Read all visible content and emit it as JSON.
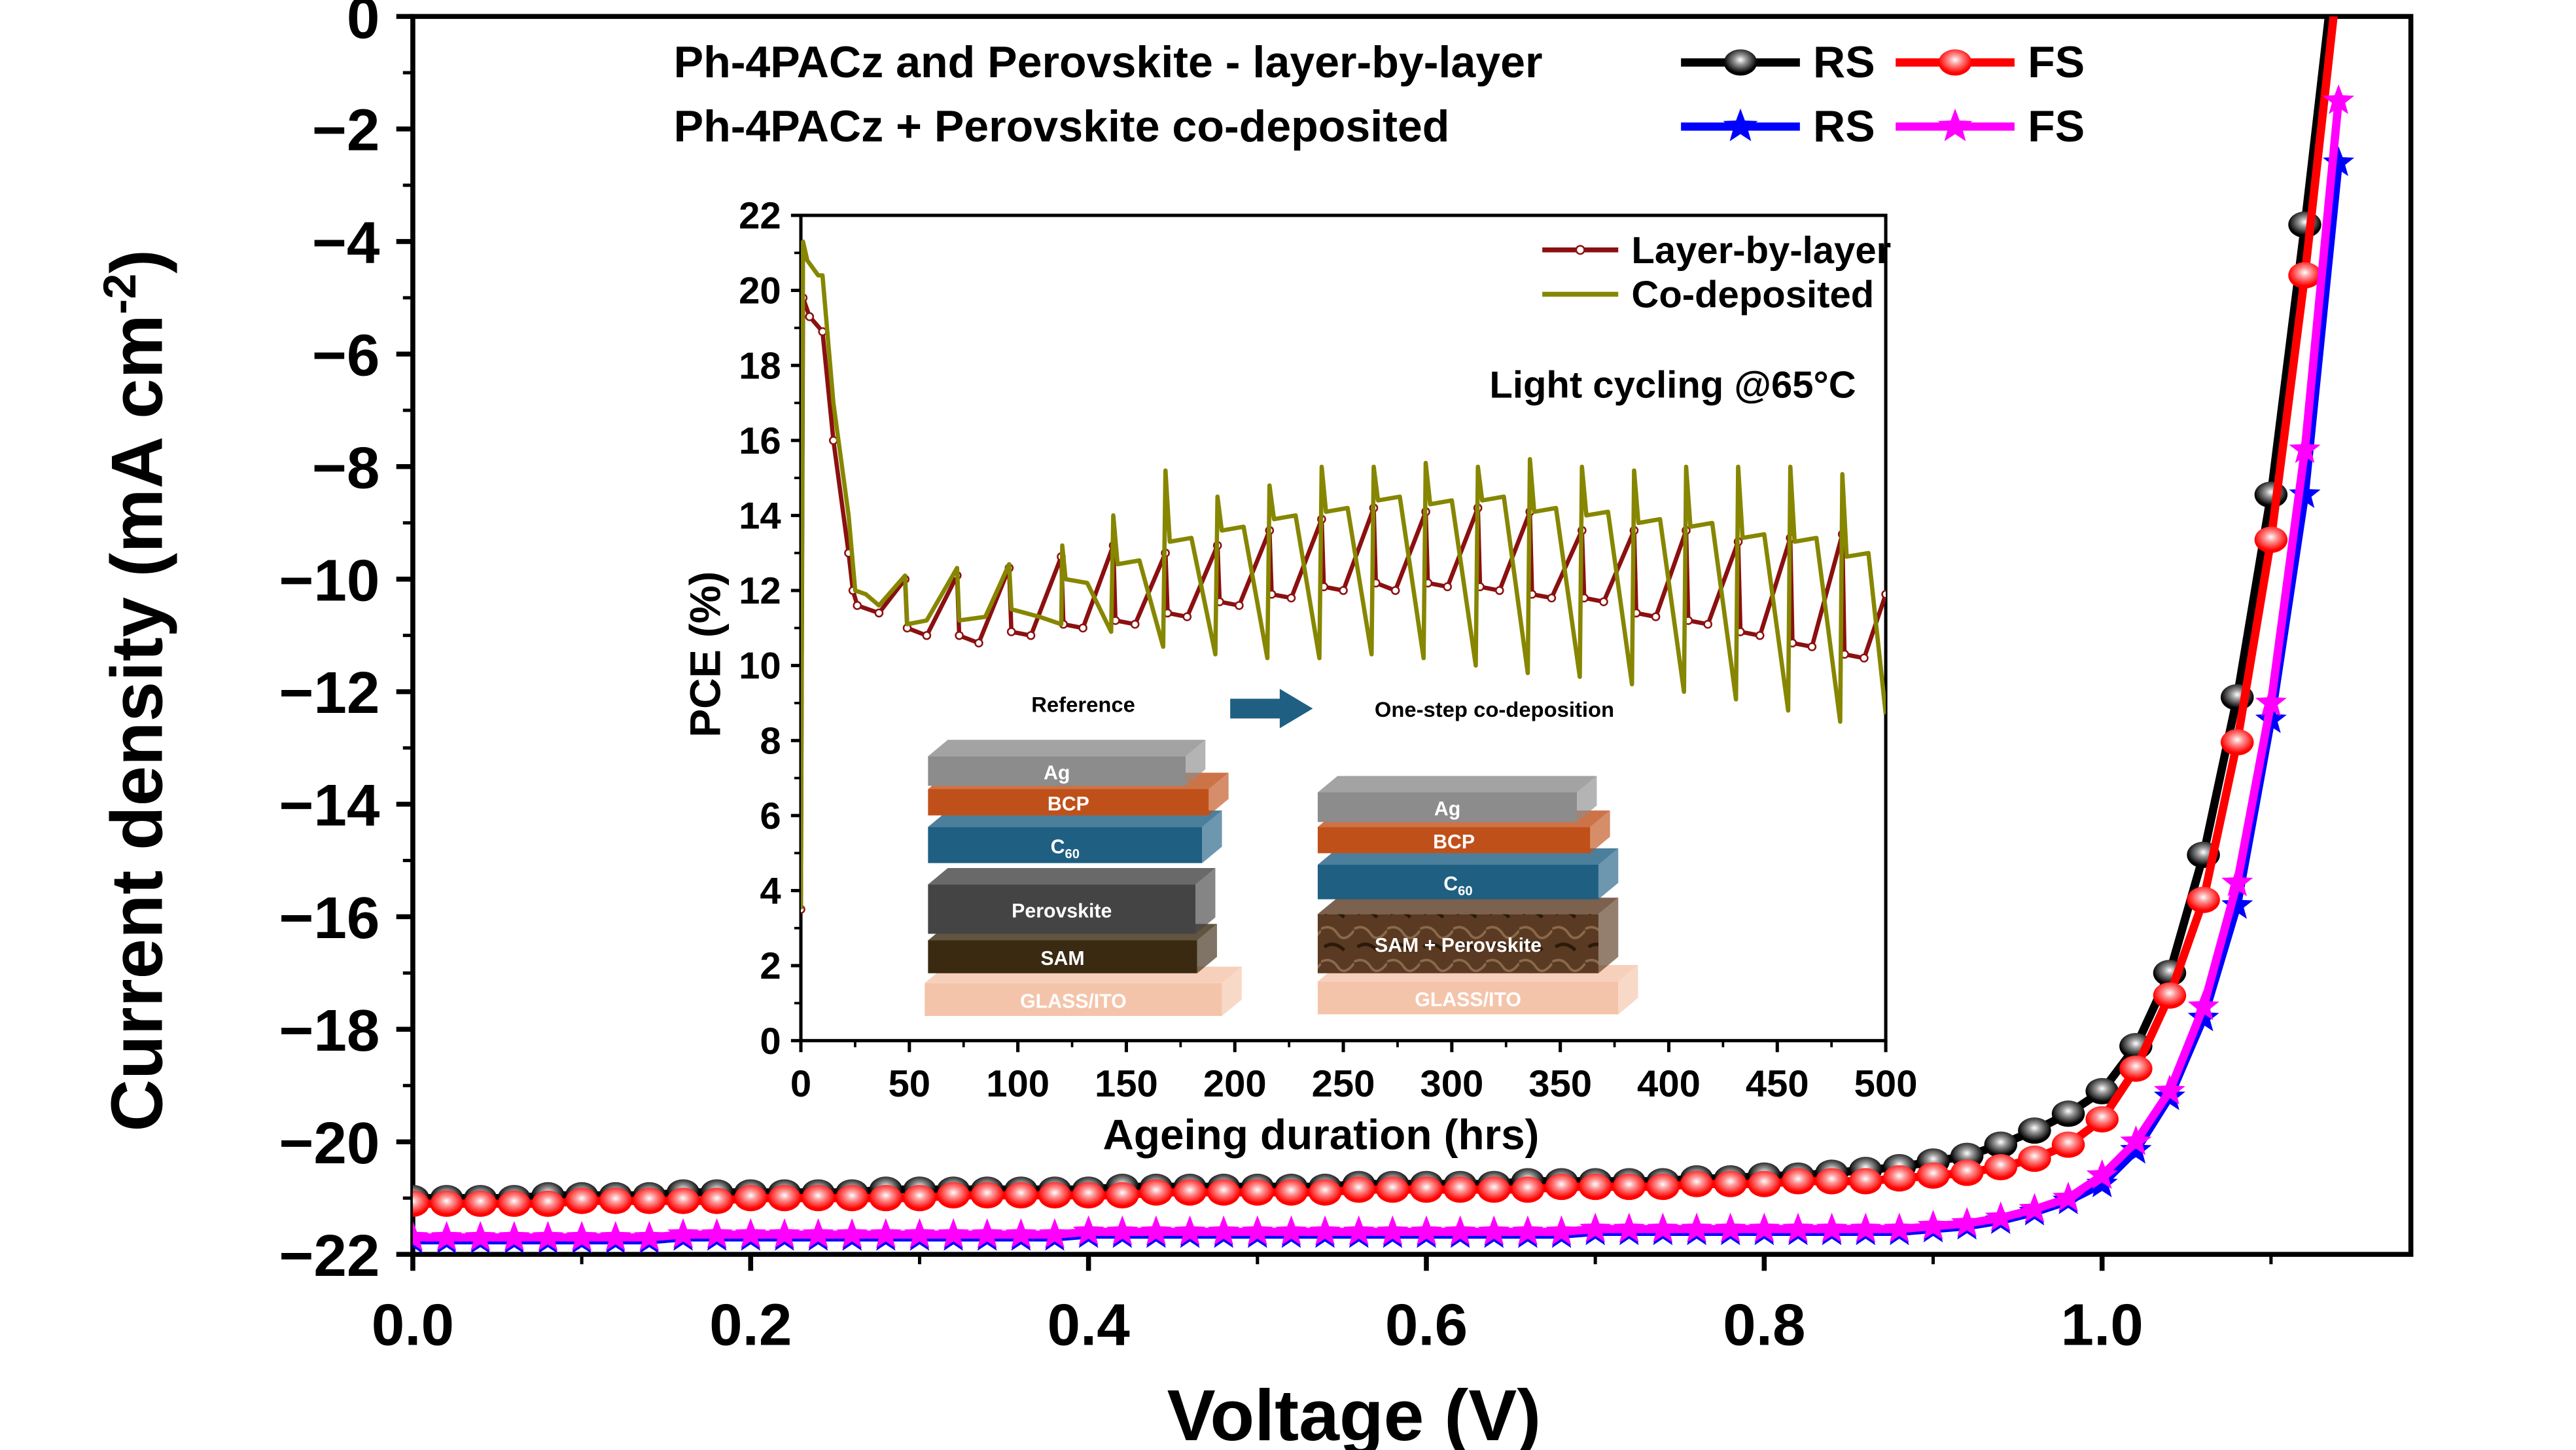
{
  "chart_data": [
    {
      "type": "line",
      "xlabel": "Voltage (V)",
      "ylabel": "Current density (mA cm",
      "ylabel_sup": "-2",
      "ylabel_end": ")",
      "xlim": [
        0,
        1.18
      ],
      "ylim": [
        -22,
        0
      ],
      "xticks": [
        "0.0",
        "0.2",
        "0.4",
        "0.6",
        "0.8",
        "1.0"
      ],
      "yticks": [
        "0",
        "−2",
        "−4",
        "−6",
        "−8",
        "−10",
        "−12",
        "−14",
        "−16",
        "−18",
        "−20",
        "−22"
      ],
      "legend": {
        "placement": "top",
        "row1_label": "Ph-4PACz and Perovskite - layer-by-layer",
        "row2_label": "Ph-4PACz + Perovskite co-deposited"
      },
      "x": [
        0,
        0.02,
        0.04,
        0.06,
        0.08,
        0.1,
        0.12,
        0.14,
        0.16,
        0.18,
        0.2,
        0.22,
        0.24,
        0.26,
        0.28,
        0.3,
        0.32,
        0.34,
        0.36,
        0.38,
        0.4,
        0.42,
        0.44,
        0.46,
        0.48,
        0.5,
        0.52,
        0.54,
        0.56,
        0.58,
        0.6,
        0.62,
        0.64,
        0.66,
        0.68,
        0.7,
        0.72,
        0.74,
        0.76,
        0.78,
        0.8,
        0.82,
        0.84,
        0.86,
        0.88,
        0.9,
        0.92,
        0.94,
        0.96,
        0.98,
        1.0,
        1.02,
        1.04,
        1.06,
        1.08,
        1.1,
        1.12,
        1.14
      ],
      "series": [
        {
          "name": "RS",
          "group": "layer-by-layer",
          "color": "#000000",
          "marker": "circle",
          "values": [
            -21.0,
            -21.0,
            -21.0,
            -21.0,
            -20.95,
            -20.95,
            -20.95,
            -20.95,
            -20.9,
            -20.9,
            -20.9,
            -20.9,
            -20.9,
            -20.9,
            -20.85,
            -20.85,
            -20.85,
            -20.85,
            -20.85,
            -20.85,
            -20.85,
            -20.8,
            -20.8,
            -20.8,
            -20.8,
            -20.8,
            -20.8,
            -20.8,
            -20.75,
            -20.75,
            -20.75,
            -20.75,
            -20.75,
            -20.7,
            -20.7,
            -20.7,
            -20.7,
            -20.7,
            -20.65,
            -20.65,
            -20.6,
            -20.6,
            -20.55,
            -20.5,
            -20.45,
            -20.35,
            -20.25,
            -20.05,
            -19.8,
            -19.5,
            -19.1,
            -18.3,
            -17.0,
            -14.9,
            -12.1,
            -8.5,
            -3.7,
            1.5
          ]
        },
        {
          "name": "FS",
          "group": "layer-by-layer",
          "color": "#ff0000",
          "marker": "circle",
          "values": [
            -21.1,
            -21.1,
            -21.1,
            -21.1,
            -21.1,
            -21.05,
            -21.05,
            -21.05,
            -21.05,
            -21.05,
            -21.0,
            -21.0,
            -21.0,
            -21.0,
            -21.0,
            -21.0,
            -20.95,
            -20.95,
            -20.95,
            -20.95,
            -20.95,
            -20.95,
            -20.9,
            -20.9,
            -20.9,
            -20.9,
            -20.9,
            -20.9,
            -20.85,
            -20.85,
            -20.85,
            -20.85,
            -20.85,
            -20.85,
            -20.8,
            -20.8,
            -20.8,
            -20.8,
            -20.75,
            -20.75,
            -20.75,
            -20.7,
            -20.7,
            -20.7,
            -20.65,
            -20.6,
            -20.55,
            -20.45,
            -20.3,
            -20.05,
            -19.6,
            -18.7,
            -17.4,
            -15.7,
            -12.9,
            -9.3,
            -4.6,
            0.8
          ]
        },
        {
          "name": "RS",
          "group": "co-deposited",
          "color": "#0000ff",
          "marker": "star",
          "values": [
            -21.75,
            -21.75,
            -21.75,
            -21.75,
            -21.75,
            -21.75,
            -21.75,
            -21.75,
            -21.7,
            -21.7,
            -21.7,
            -21.7,
            -21.7,
            -21.7,
            -21.7,
            -21.7,
            -21.7,
            -21.7,
            -21.7,
            -21.7,
            -21.65,
            -21.65,
            -21.65,
            -21.65,
            -21.65,
            -21.65,
            -21.65,
            -21.65,
            -21.65,
            -21.65,
            -21.65,
            -21.65,
            -21.65,
            -21.65,
            -21.65,
            -21.6,
            -21.6,
            -21.6,
            -21.6,
            -21.6,
            -21.6,
            -21.6,
            -21.6,
            -21.6,
            -21.6,
            -21.55,
            -21.5,
            -21.4,
            -21.25,
            -21.05,
            -20.75,
            -20.15,
            -19.2,
            -17.8,
            -15.8,
            -12.5,
            -8.5,
            -2.6
          ]
        },
        {
          "name": "FS",
          "group": "co-deposited",
          "color": "#ff00ff",
          "marker": "star",
          "values": [
            -21.7,
            -21.7,
            -21.7,
            -21.7,
            -21.7,
            -21.7,
            -21.7,
            -21.7,
            -21.65,
            -21.65,
            -21.65,
            -21.65,
            -21.65,
            -21.65,
            -21.65,
            -21.65,
            -21.65,
            -21.65,
            -21.65,
            -21.65,
            -21.6,
            -21.6,
            -21.6,
            -21.6,
            -21.6,
            -21.6,
            -21.6,
            -21.6,
            -21.6,
            -21.6,
            -21.6,
            -21.6,
            -21.6,
            -21.6,
            -21.6,
            -21.55,
            -21.55,
            -21.55,
            -21.55,
            -21.55,
            -21.55,
            -21.55,
            -21.55,
            -21.55,
            -21.55,
            -21.5,
            -21.45,
            -21.35,
            -21.2,
            -21.0,
            -20.6,
            -20.0,
            -19.1,
            -17.6,
            -15.4,
            -12.2,
            -7.7,
            -1.5
          ]
        }
      ]
    },
    {
      "type": "line",
      "xlabel": "Ageing duration (hrs)",
      "ylabel": "PCE (%)",
      "xlim": [
        0,
        500
      ],
      "ylim": [
        0,
        22
      ],
      "xticks": [
        "0",
        "50",
        "100",
        "150",
        "200",
        "250",
        "300",
        "350",
        "400",
        "450",
        "500"
      ],
      "yticks": [
        "0",
        "2",
        "4",
        "6",
        "8",
        "10",
        "12",
        "14",
        "16",
        "18",
        "20",
        "22"
      ],
      "annotation": "Light cycling @65°C",
      "legend_placement": "top-right",
      "series": [
        {
          "name": "Layer-by-layer",
          "color": "#8b1010",
          "marker": "circle",
          "points": [
            [
              0,
              3.5
            ],
            [
              1,
              19.8
            ],
            [
              4,
              19.3
            ],
            [
              10,
              18.9
            ],
            [
              15,
              16
            ],
            [
              22,
              13
            ],
            [
              24,
              12.0
            ],
            [
              26,
              11.6
            ],
            [
              36,
              11.4
            ],
            [
              48,
              12.3
            ],
            [
              49,
              11.0
            ],
            [
              58,
              10.8
            ],
            [
              72,
              12.4
            ],
            [
              73,
              10.8
            ],
            [
              82,
              10.6
            ],
            [
              96,
              12.6
            ],
            [
              97,
              10.9
            ],
            [
              106,
              10.8
            ],
            [
              120,
              12.9
            ],
            [
              121,
              11.1
            ],
            [
              130,
              11.0
            ],
            [
              144,
              13.2
            ],
            [
              145,
              11.2
            ],
            [
              154,
              11.1
            ],
            [
              168,
              13.0
            ],
            [
              169,
              11.4
            ],
            [
              178,
              11.3
            ],
            [
              192,
              13.2
            ],
            [
              193,
              11.7
            ],
            [
              202,
              11.6
            ],
            [
              216,
              13.6
            ],
            [
              217,
              11.9
            ],
            [
              226,
              11.8
            ],
            [
              240,
              13.9
            ],
            [
              241,
              12.1
            ],
            [
              250,
              12.0
            ],
            [
              264,
              14.2
            ],
            [
              265,
              12.2
            ],
            [
              274,
              12.0
            ],
            [
              288,
              14.1
            ],
            [
              289,
              12.2
            ],
            [
              298,
              12.1
            ],
            [
              312,
              14.2
            ],
            [
              313,
              12.1
            ],
            [
              322,
              12.0
            ],
            [
              336,
              14.1
            ],
            [
              337,
              11.9
            ],
            [
              346,
              11.8
            ],
            [
              360,
              13.6
            ],
            [
              361,
              11.8
            ],
            [
              370,
              11.7
            ],
            [
              384,
              13.6
            ],
            [
              385,
              11.4
            ],
            [
              394,
              11.3
            ],
            [
              408,
              13.6
            ],
            [
              409,
              11.2
            ],
            [
              418,
              11.1
            ],
            [
              432,
              13.3
            ],
            [
              433,
              10.9
            ],
            [
              442,
              10.8
            ],
            [
              456,
              13.4
            ],
            [
              457,
              10.6
            ],
            [
              466,
              10.5
            ],
            [
              480,
              13.5
            ],
            [
              481,
              10.3
            ],
            [
              490,
              10.2
            ],
            [
              500,
              11.9
            ]
          ]
        },
        {
          "name": "Co-deposited",
          "color": "#868600",
          "marker": "none",
          "points": [
            [
              0,
              3.5
            ],
            [
              1,
              21.3
            ],
            [
              3,
              20.8
            ],
            [
              8,
              20.4
            ],
            [
              10,
              20.4
            ],
            [
              15,
              17
            ],
            [
              22,
              14
            ],
            [
              25,
              12
            ],
            [
              30,
              11.9
            ],
            [
              36,
              11.6
            ],
            [
              48,
              12.4
            ],
            [
              49,
              11.1
            ],
            [
              58,
              11.2
            ],
            [
              72,
              12.6
            ],
            [
              73,
              11.2
            ],
            [
              85,
              11.3
            ],
            [
              96,
              12.7
            ],
            [
              97,
              11.5
            ],
            [
              110,
              11.3
            ],
            [
              120,
              11.1
            ],
            [
              120.5,
              13.2
            ],
            [
              122,
              12.3
            ],
            [
              132,
              12.2
            ],
            [
              143,
              10.9
            ],
            [
              144,
              14.0
            ],
            [
              146,
              12.7
            ],
            [
              156,
              12.8
            ],
            [
              167,
              10.5
            ],
            [
              168,
              15.2
            ],
            [
              170,
              13.3
            ],
            [
              180,
              13.4
            ],
            [
              191,
              10.3
            ],
            [
              192,
              14.5
            ],
            [
              194,
              13.6
            ],
            [
              204,
              13.7
            ],
            [
              215,
              10.2
            ],
            [
              216,
              14.8
            ],
            [
              218,
              13.9
            ],
            [
              228,
              14.0
            ],
            [
              239,
              10.2
            ],
            [
              240,
              15.3
            ],
            [
              242,
              14.1
            ],
            [
              252,
              14.2
            ],
            [
              263,
              10.3
            ],
            [
              264,
              15.3
            ],
            [
              266,
              14.4
            ],
            [
              276,
              14.5
            ],
            [
              287,
              10.2
            ],
            [
              288,
              15.4
            ],
            [
              290,
              14.3
            ],
            [
              300,
              14.4
            ],
            [
              311,
              10.0
            ],
            [
              312,
              15.3
            ],
            [
              314,
              14.4
            ],
            [
              324,
              14.5
            ],
            [
              335,
              9.8
            ],
            [
              336,
              15.5
            ],
            [
              338,
              14.1
            ],
            [
              348,
              14.2
            ],
            [
              359,
              9.7
            ],
            [
              360,
              15.3
            ],
            [
              362,
              14.0
            ],
            [
              372,
              14.1
            ],
            [
              383,
              9.5
            ],
            [
              384,
              15.2
            ],
            [
              386,
              13.8
            ],
            [
              396,
              13.9
            ],
            [
              407,
              9.3
            ],
            [
              408,
              15.3
            ],
            [
              410,
              13.7
            ],
            [
              420,
              13.8
            ],
            [
              431,
              9.1
            ],
            [
              432,
              15.3
            ],
            [
              434,
              13.4
            ],
            [
              444,
              13.5
            ],
            [
              455,
              8.8
            ],
            [
              456,
              15.3
            ],
            [
              458,
              13.3
            ],
            [
              468,
              13.4
            ],
            [
              479,
              8.5
            ],
            [
              480,
              15.1
            ],
            [
              482,
              12.9
            ],
            [
              492,
              13.0
            ],
            [
              500,
              8.7
            ]
          ]
        }
      ]
    }
  ],
  "schematic": {
    "reference_title": "Reference",
    "codep_title": "One-step co-deposition",
    "reference_layers": [
      "Ag",
      "BCP",
      "C",
      "Perovskite",
      "SAM",
      "GLASS/ITO"
    ],
    "codep_layers": [
      "Ag",
      "BCP",
      "C",
      "SAM + Perovskite",
      "GLASS/ITO"
    ],
    "c60_sub": "60",
    "colors": {
      "ag": "#8c8c8c",
      "bcp": "#c0501a",
      "c60": "#1f5f82",
      "perovskite": "#444444",
      "sam": "#3a2a12",
      "glass": "#f4c4aa",
      "mixed": "#5a3a22",
      "arrow": "#1f5f82"
    }
  }
}
